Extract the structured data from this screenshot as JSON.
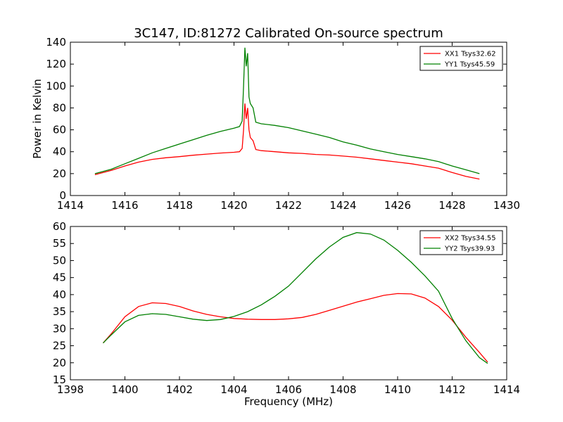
{
  "figure": {
    "title": "3C147, ID:81272 Calibrated On-source spectrum",
    "xlabel": "Frequency (MHz)",
    "ylabel_top": "Power in Kelvin"
  },
  "chart_data": [
    {
      "type": "line",
      "title": "3C147, ID:81272 Calibrated On-source spectrum",
      "xlabel": "",
      "ylabel": "Power in Kelvin",
      "xlim": [
        1414,
        1430
      ],
      "ylim": [
        0,
        140
      ],
      "xticks": [
        1414,
        1416,
        1418,
        1420,
        1422,
        1424,
        1426,
        1428,
        1430
      ],
      "yticks": [
        0,
        20,
        40,
        60,
        80,
        100,
        120,
        140
      ],
      "grid": false,
      "legend_position": "top-right",
      "series": [
        {
          "name": "XX1 Tsys32.62",
          "color": "#ff0000",
          "points": [
            [
              1414.9,
              19
            ],
            [
              1415.5,
              23
            ],
            [
              1416,
              27
            ],
            [
              1416.5,
              30.5
            ],
            [
              1417,
              33
            ],
            [
              1417.5,
              34.5
            ],
            [
              1418,
              35.5
            ],
            [
              1418.5,
              36.8
            ],
            [
              1419,
              37.8
            ],
            [
              1419.5,
              38.8
            ],
            [
              1420,
              39.5
            ],
            [
              1420.2,
              40
            ],
            [
              1420.3,
              43
            ],
            [
              1420.35,
              60
            ],
            [
              1420.4,
              84
            ],
            [
              1420.45,
              70
            ],
            [
              1420.5,
              80
            ],
            [
              1420.55,
              60
            ],
            [
              1420.6,
              53
            ],
            [
              1420.7,
              50
            ],
            [
              1420.8,
              42
            ],
            [
              1421,
              41
            ],
            [
              1421.5,
              40
            ],
            [
              1422,
              39
            ],
            [
              1422.5,
              38.5
            ],
            [
              1423,
              37.5
            ],
            [
              1423.5,
              37
            ],
            [
              1424,
              36
            ],
            [
              1424.5,
              35
            ],
            [
              1425,
              33.5
            ],
            [
              1425.5,
              32
            ],
            [
              1426,
              30.5
            ],
            [
              1426.5,
              29
            ],
            [
              1427,
              27
            ],
            [
              1427.5,
              25
            ],
            [
              1428,
              21
            ],
            [
              1428.5,
              17.5
            ],
            [
              1429,
              15
            ]
          ]
        },
        {
          "name": "YY1 Tsys45.59",
          "color": "#008000",
          "points": [
            [
              1414.9,
              20
            ],
            [
              1415.5,
              24
            ],
            [
              1416,
              29
            ],
            [
              1416.5,
              34
            ],
            [
              1417,
              39
            ],
            [
              1417.5,
              43
            ],
            [
              1418,
              47
            ],
            [
              1418.5,
              51
            ],
            [
              1419,
              55
            ],
            [
              1419.5,
              58.5
            ],
            [
              1420,
              61.5
            ],
            [
              1420.2,
              63
            ],
            [
              1420.3,
              68
            ],
            [
              1420.35,
              100
            ],
            [
              1420.4,
              135
            ],
            [
              1420.45,
              118
            ],
            [
              1420.5,
              130
            ],
            [
              1420.55,
              90
            ],
            [
              1420.6,
              84
            ],
            [
              1420.7,
              80
            ],
            [
              1420.8,
              67
            ],
            [
              1421,
              65.5
            ],
            [
              1421.5,
              64
            ],
            [
              1422,
              62
            ],
            [
              1422.5,
              59
            ],
            [
              1423,
              56
            ],
            [
              1423.5,
              53
            ],
            [
              1424,
              49
            ],
            [
              1424.5,
              46
            ],
            [
              1425,
              42.5
            ],
            [
              1425.5,
              40
            ],
            [
              1426,
              37.5
            ],
            [
              1426.5,
              35.5
            ],
            [
              1427,
              33.5
            ],
            [
              1427.5,
              31
            ],
            [
              1428,
              27
            ],
            [
              1428.5,
              23.5
            ],
            [
              1429,
              20
            ]
          ]
        }
      ]
    },
    {
      "type": "line",
      "title": "",
      "xlabel": "Frequency (MHz)",
      "ylabel": "",
      "xlim": [
        1398,
        1414
      ],
      "ylim": [
        15,
        60
      ],
      "xticks": [
        1398,
        1400,
        1402,
        1404,
        1406,
        1408,
        1410,
        1412,
        1414
      ],
      "yticks": [
        15,
        20,
        25,
        30,
        35,
        40,
        45,
        50,
        55,
        60
      ],
      "grid": false,
      "legend_position": "top-right",
      "series": [
        {
          "name": "XX2 Tsys34.55",
          "color": "#ff0000",
          "points": [
            [
              1399.2,
              25.8
            ],
            [
              1399.5,
              28.5
            ],
            [
              1400,
              33.5
            ],
            [
              1400.5,
              36.5
            ],
            [
              1401,
              37.6
            ],
            [
              1401.5,
              37.4
            ],
            [
              1402,
              36.5
            ],
            [
              1402.5,
              35.2
            ],
            [
              1403,
              34.2
            ],
            [
              1403.5,
              33.5
            ],
            [
              1404,
              33
            ],
            [
              1404.5,
              32.8
            ],
            [
              1405,
              32.7
            ],
            [
              1405.5,
              32.7
            ],
            [
              1406,
              32.9
            ],
            [
              1406.5,
              33.3
            ],
            [
              1407,
              34.2
            ],
            [
              1407.5,
              35.4
            ],
            [
              1408,
              36.6
            ],
            [
              1408.5,
              37.8
            ],
            [
              1409,
              38.8
            ],
            [
              1409.5,
              39.8
            ],
            [
              1410,
              40.3
            ],
            [
              1410.5,
              40.2
            ],
            [
              1411,
              39
            ],
            [
              1411.5,
              36.5
            ],
            [
              1412,
              32.5
            ],
            [
              1412.5,
              27.5
            ],
            [
              1413,
              23
            ],
            [
              1413.3,
              20.2
            ]
          ]
        },
        {
          "name": "YY2 Tsys39.93",
          "color": "#008000",
          "points": [
            [
              1399.2,
              25.8
            ],
            [
              1399.5,
              28.2
            ],
            [
              1400,
              32
            ],
            [
              1400.5,
              33.9
            ],
            [
              1401,
              34.4
            ],
            [
              1401.5,
              34.2
            ],
            [
              1402,
              33.5
            ],
            [
              1402.5,
              32.8
            ],
            [
              1403,
              32.4
            ],
            [
              1403.5,
              32.7
            ],
            [
              1404,
              33.6
            ],
            [
              1404.5,
              35
            ],
            [
              1405,
              37
            ],
            [
              1405.5,
              39.5
            ],
            [
              1406,
              42.5
            ],
            [
              1406.5,
              46.5
            ],
            [
              1407,
              50.5
            ],
            [
              1407.5,
              54
            ],
            [
              1408,
              56.8
            ],
            [
              1408.5,
              58.2
            ],
            [
              1409,
              57.8
            ],
            [
              1409.5,
              56
            ],
            [
              1410,
              53
            ],
            [
              1410.5,
              49.5
            ],
            [
              1411,
              45.5
            ],
            [
              1411.5,
              41
            ],
            [
              1412,
              33
            ],
            [
              1412.5,
              26.5
            ],
            [
              1413,
              21.5
            ],
            [
              1413.3,
              19.8
            ]
          ]
        }
      ]
    }
  ]
}
